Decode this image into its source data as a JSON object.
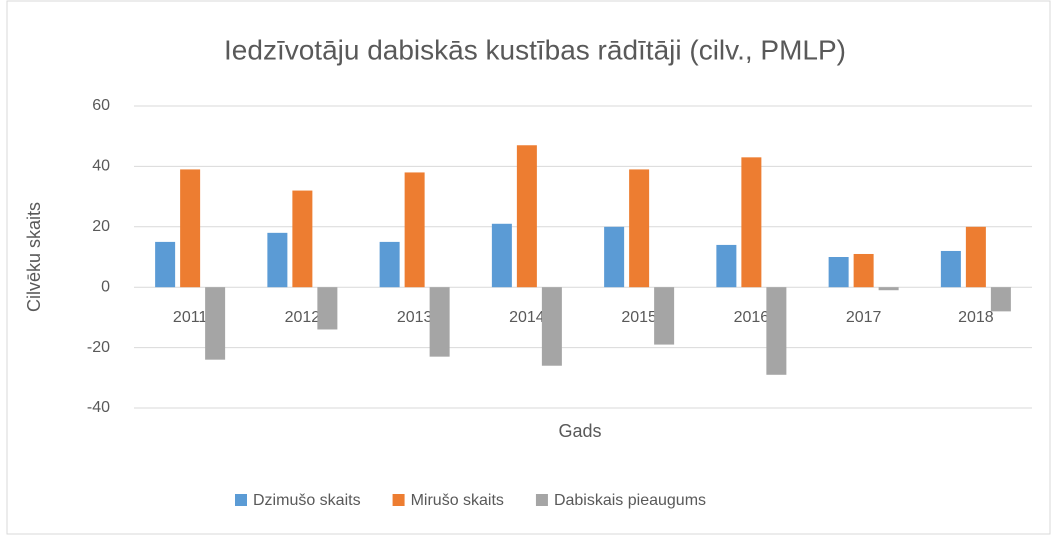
{
  "chart_data": {
    "type": "bar",
    "title": "Iedzīvotāju dabiskās kustības rādītāji (cilv., PMLP)",
    "x_label": "Gads",
    "y_label": "Cilvēku skaits",
    "categories": [
      "2011",
      "2012",
      "2013",
      "2014",
      "2015",
      "2016",
      "2017",
      "2018"
    ],
    "series": [
      {
        "name": "Dzimušo skaits",
        "color": "#5b9bd5",
        "values": [
          15,
          18,
          15,
          21,
          20,
          14,
          10,
          12
        ]
      },
      {
        "name": "Mirušo skaits",
        "color": "#ed7d31",
        "values": [
          39,
          32,
          38,
          47,
          39,
          43,
          11,
          20
        ]
      },
      {
        "name": "Dabiskais pieaugums",
        "color": "#a5a5a5",
        "values": [
          -24,
          -14,
          -23,
          -26,
          -19,
          -29,
          -1,
          -8
        ]
      }
    ],
    "ylim": [
      -40,
      60
    ],
    "yticks": [
      -40,
      -20,
      0,
      20,
      40,
      60
    ],
    "grid": true,
    "legend": "bottom"
  }
}
